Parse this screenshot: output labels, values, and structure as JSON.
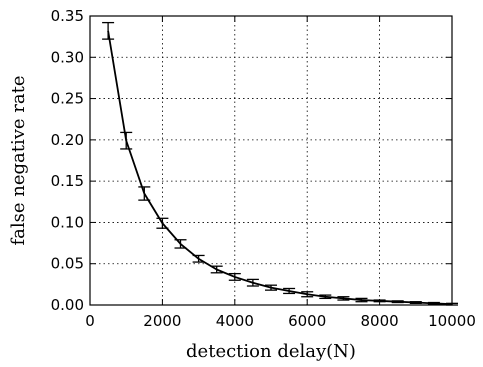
{
  "chart_data": {
    "type": "line",
    "title": "",
    "xlabel": "detection delay(N)",
    "ylabel": "false negative rate",
    "xlim": [
      0,
      10000
    ],
    "ylim": [
      0,
      0.35
    ],
    "xticks": [
      0,
      2000,
      4000,
      6000,
      8000,
      10000
    ],
    "xtick_labels": [
      "0",
      "2000",
      "4000",
      "6000",
      "8000",
      "10000"
    ],
    "yticks": [
      0.0,
      0.05,
      0.1,
      0.15,
      0.2,
      0.25,
      0.3,
      0.35
    ],
    "ytick_labels": [
      "0.00",
      "0.05",
      "0.10",
      "0.15",
      "0.20",
      "0.25",
      "0.30",
      "0.35"
    ],
    "grid": true,
    "line_color": "#000000",
    "series": [
      {
        "x": [
          500,
          1000,
          1500,
          2000,
          2500,
          3000,
          3500,
          4000,
          4500,
          5000,
          5500,
          6000,
          6500,
          7000,
          7500,
          8000,
          8500,
          9000,
          9500,
          10000
        ],
        "y": [
          0.332,
          0.199,
          0.135,
          0.099,
          0.074,
          0.056,
          0.043,
          0.034,
          0.027,
          0.021,
          0.017,
          0.013,
          0.01,
          0.008,
          0.006,
          0.005,
          0.004,
          0.003,
          0.002,
          0.001
        ],
        "error": [
          0.01,
          0.01,
          0.008,
          0.006,
          0.005,
          0.004,
          0.004,
          0.004,
          0.004,
          0.003,
          0.003,
          0.003,
          0.002,
          0.002,
          0.002,
          0.001,
          0.001,
          0.001,
          0.001,
          0.001
        ]
      }
    ]
  }
}
